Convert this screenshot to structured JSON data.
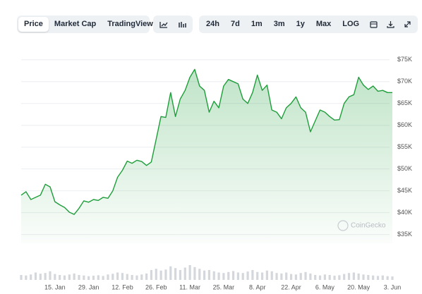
{
  "toolbar": {
    "views": [
      "Price",
      "Market Cap",
      "TradingView"
    ],
    "ranges": [
      "24h",
      "7d",
      "1m",
      "3m",
      "1y",
      "Max",
      "LOG"
    ]
  },
  "chart_data": {
    "type": "line",
    "watermark": "CoinGecko",
    "categories": [
      null,
      null,
      null,
      null,
      null,
      null,
      null,
      "15. Jan",
      null,
      null,
      null,
      null,
      null,
      null,
      "29. Jan",
      null,
      null,
      null,
      null,
      null,
      null,
      "12. Feb",
      null,
      null,
      null,
      null,
      null,
      null,
      "26. Feb",
      null,
      null,
      null,
      null,
      null,
      null,
      "11. Mar",
      null,
      null,
      null,
      null,
      null,
      null,
      "25. Mar",
      null,
      null,
      null,
      null,
      null,
      null,
      "8. Apr",
      null,
      null,
      null,
      null,
      null,
      null,
      "22. Apr",
      null,
      null,
      null,
      null,
      null,
      null,
      "6. May",
      null,
      null,
      null,
      null,
      null,
      null,
      "20. May",
      null,
      null,
      null,
      null,
      null,
      null,
      "3. Jun"
    ],
    "values": [
      44000,
      44800,
      43000,
      43500,
      44000,
      46500,
      45900,
      42500,
      41800,
      41200,
      40100,
      39600,
      41000,
      42700,
      42400,
      43000,
      42800,
      43500,
      43300,
      45000,
      48100,
      49700,
      51800,
      51300,
      52000,
      51700,
      50800,
      51600,
      56800,
      62000,
      61800,
      67500,
      62000,
      66000,
      68000,
      71000,
      72800,
      69000,
      68000,
      63000,
      65500,
      64000,
      69000,
      70500,
      70000,
      69500,
      66000,
      65000,
      67500,
      71500,
      68000,
      69200,
      63500,
      63000,
      61500,
      64000,
      65000,
      66500,
      64000,
      63000,
      58500,
      61000,
      63500,
      63000,
      62000,
      61200,
      61300,
      65000,
      66500,
      67000,
      71000,
      69200,
      68200,
      69000,
      67800,
      68000,
      67500,
      67500
    ],
    "color": "#1e9e3a",
    "ylim": [
      33000,
      79000
    ],
    "yticks": [
      {
        "value": 35000,
        "label": "$35K"
      },
      {
        "value": 40000,
        "label": "$40K"
      },
      {
        "value": 45000,
        "label": "$45K"
      },
      {
        "value": 50000,
        "label": "$50K"
      },
      {
        "value": 55000,
        "label": "$55K"
      },
      {
        "value": 60000,
        "label": "$60K"
      },
      {
        "value": 65000,
        "label": "$65K"
      },
      {
        "value": 70000,
        "label": "$70K"
      },
      {
        "value": 75000,
        "label": "$75K"
      }
    ],
    "grid": true,
    "volume": {
      "color": "#d4d7dc",
      "ylim": [
        0,
        100
      ],
      "values": [
        20,
        18,
        22,
        30,
        25,
        28,
        35,
        24,
        20,
        18,
        22,
        26,
        20,
        18,
        15,
        17,
        19,
        16,
        22,
        25,
        30,
        28,
        24,
        20,
        18,
        22,
        26,
        40,
        45,
        38,
        42,
        55,
        48,
        40,
        50,
        60,
        52,
        45,
        38,
        40,
        35,
        30,
        28,
        32,
        36,
        30,
        28,
        34,
        40,
        32,
        30,
        38,
        35,
        28,
        26,
        30,
        24,
        22,
        28,
        32,
        26,
        20,
        18,
        22,
        20,
        17,
        19,
        24,
        28,
        30,
        26,
        22,
        20,
        18,
        16,
        18,
        15,
        14
      ]
    }
  }
}
